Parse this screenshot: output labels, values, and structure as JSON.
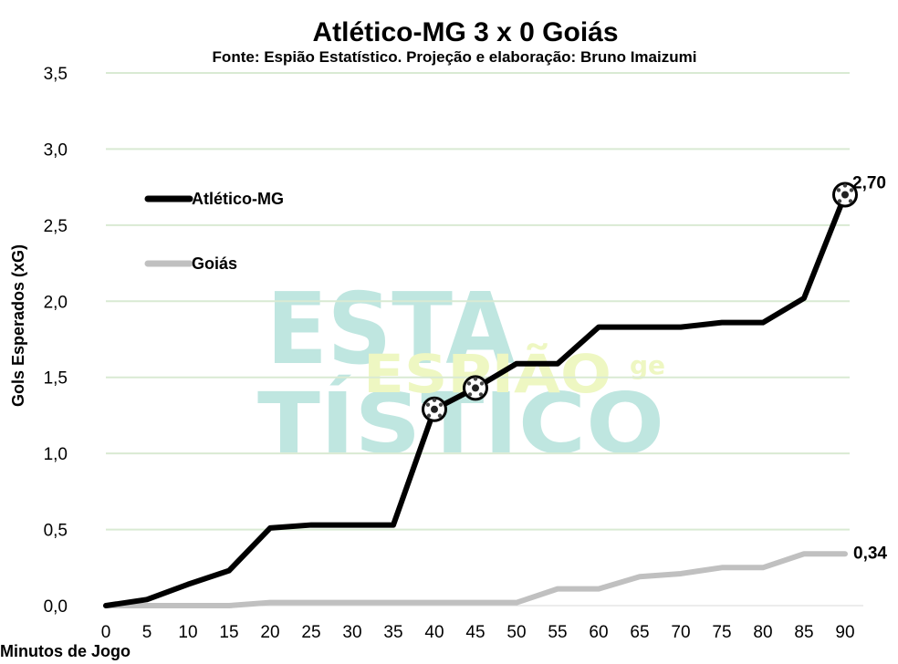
{
  "chart_data": {
    "type": "line",
    "title": "Atlético-MG 3 x 0 Goiás",
    "subtitle": "Fonte: Espião Estatístico. Projeção e elaboração: Bruno Imaizumi",
    "xlabel": "Minutos de Jogo",
    "ylabel": "Gols Esperados (xG)",
    "x": [
      0,
      5,
      10,
      15,
      20,
      25,
      30,
      35,
      40,
      45,
      50,
      55,
      60,
      65,
      70,
      75,
      80,
      85,
      90
    ],
    "ylim": [
      0,
      3.5
    ],
    "yticks": [
      "0,0",
      "0,5",
      "1,0",
      "1,5",
      "2,0",
      "2,5",
      "3,0",
      "3,5"
    ],
    "grid": true,
    "legend": "top-left",
    "series": [
      {
        "name": "Atlético-MG",
        "color": "#000000",
        "values": [
          0.0,
          0.04,
          0.14,
          0.23,
          0.51,
          0.53,
          0.53,
          0.53,
          1.29,
          1.43,
          1.59,
          1.59,
          1.83,
          1.83,
          1.83,
          1.86,
          1.86,
          2.02,
          2.7
        ],
        "goals_at": [
          40,
          45,
          90
        ],
        "end_label": "2,70"
      },
      {
        "name": "Goiás",
        "color": "#c0c0c0",
        "values": [
          0.0,
          0.0,
          0.0,
          0.0,
          0.02,
          0.02,
          0.02,
          0.02,
          0.02,
          0.02,
          0.02,
          0.11,
          0.11,
          0.19,
          0.21,
          0.25,
          0.25,
          0.34,
          0.34
        ],
        "end_label": "0,34"
      }
    ],
    "watermark": {
      "line1": "ESTA",
      "line2": "TÍSTICO",
      "overlay": "ESPIÃO",
      "small": "ge",
      "color_main": "#bfe6e0",
      "color_overlay": "#eef7c2"
    },
    "gridline_color": "#d9ead3"
  }
}
